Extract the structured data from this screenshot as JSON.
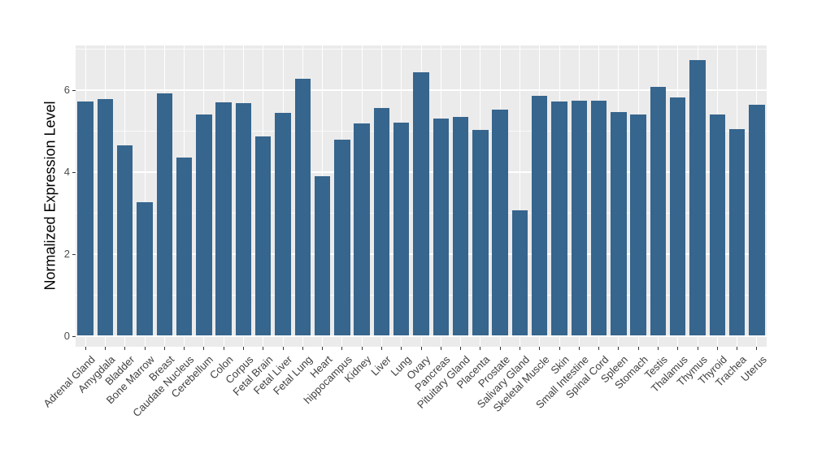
{
  "chart_data": {
    "type": "bar",
    "title": "",
    "xlabel": "",
    "ylabel": "Normalized Expression Level",
    "categories": [
      "Adrenal Gland",
      "Amygdala",
      "Bladder",
      "Bone Marrow",
      "Breast",
      "Caudate Nucleus",
      "Cerebellum",
      "Colon",
      "Corpus",
      "Fetal Brain",
      "Fetal Liver",
      "Fetal Lung",
      "Heart",
      "hippocampus",
      "Kidney",
      "Liver",
      "Lung",
      "Ovary",
      "Pancreas",
      "Pituitary Gland",
      "Placenta",
      "Prostate",
      "Salivary Gland",
      "Skeletal Muscle",
      "Skin",
      "Small Intestine",
      "Spinal Cord",
      "Spleen",
      "Stomach",
      "Testis",
      "Thalamus",
      "Thymus",
      "Thyroid",
      "Trachea",
      "Uterus"
    ],
    "values": [
      5.72,
      5.78,
      4.65,
      3.26,
      5.93,
      4.35,
      5.41,
      5.7,
      5.69,
      4.88,
      5.45,
      6.27,
      3.89,
      4.79,
      5.19,
      5.57,
      5.21,
      6.44,
      5.31,
      5.34,
      5.02,
      5.53,
      3.06,
      5.87,
      5.72,
      5.75,
      5.74,
      5.47,
      5.41,
      6.08,
      5.82,
      6.74,
      5.41,
      5.04,
      5.64
    ],
    "ylim": [
      0,
      7.09
    ],
    "yticks": [
      0,
      2,
      4,
      6
    ],
    "yticks_minor": [
      1,
      3,
      5,
      7
    ],
    "grid": "on",
    "legend": "none",
    "x_label_rotation_deg": 45,
    "colors": {
      "bar_fill": "#36658D",
      "panel_background": "#EBEBEB",
      "gridline": "#FFFFFF",
      "tick_mark": "#333333",
      "y_tick_label": "#4D4D4D",
      "x_tick_label": "#404040",
      "axis_title": "#000000",
      "figure_background": "#FFFFFF"
    }
  }
}
